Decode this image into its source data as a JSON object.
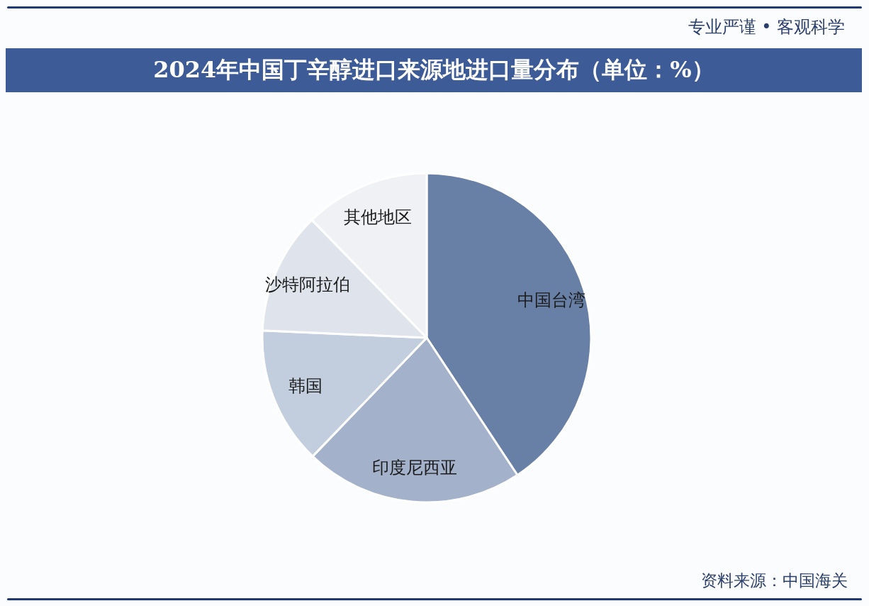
{
  "chart_data": {
    "type": "pie",
    "title": "2024年中国丁辛醇进口来源地进口量分布（单位：%）",
    "categories": [
      "中国台湾",
      "印度尼西亚",
      "韩国",
      "沙特阿拉伯",
      "其他地区"
    ],
    "values": [
      40.7,
      21.5,
      13.5,
      12.0,
      12.3
    ],
    "colors": [
      "#687fa6",
      "#a3b1ca",
      "#c2cddd",
      "#dfe4ec",
      "#eff1f4"
    ],
    "annotations": [
      "专业严谨 • 客观科学",
      "资料来源：中国海关"
    ]
  }
}
